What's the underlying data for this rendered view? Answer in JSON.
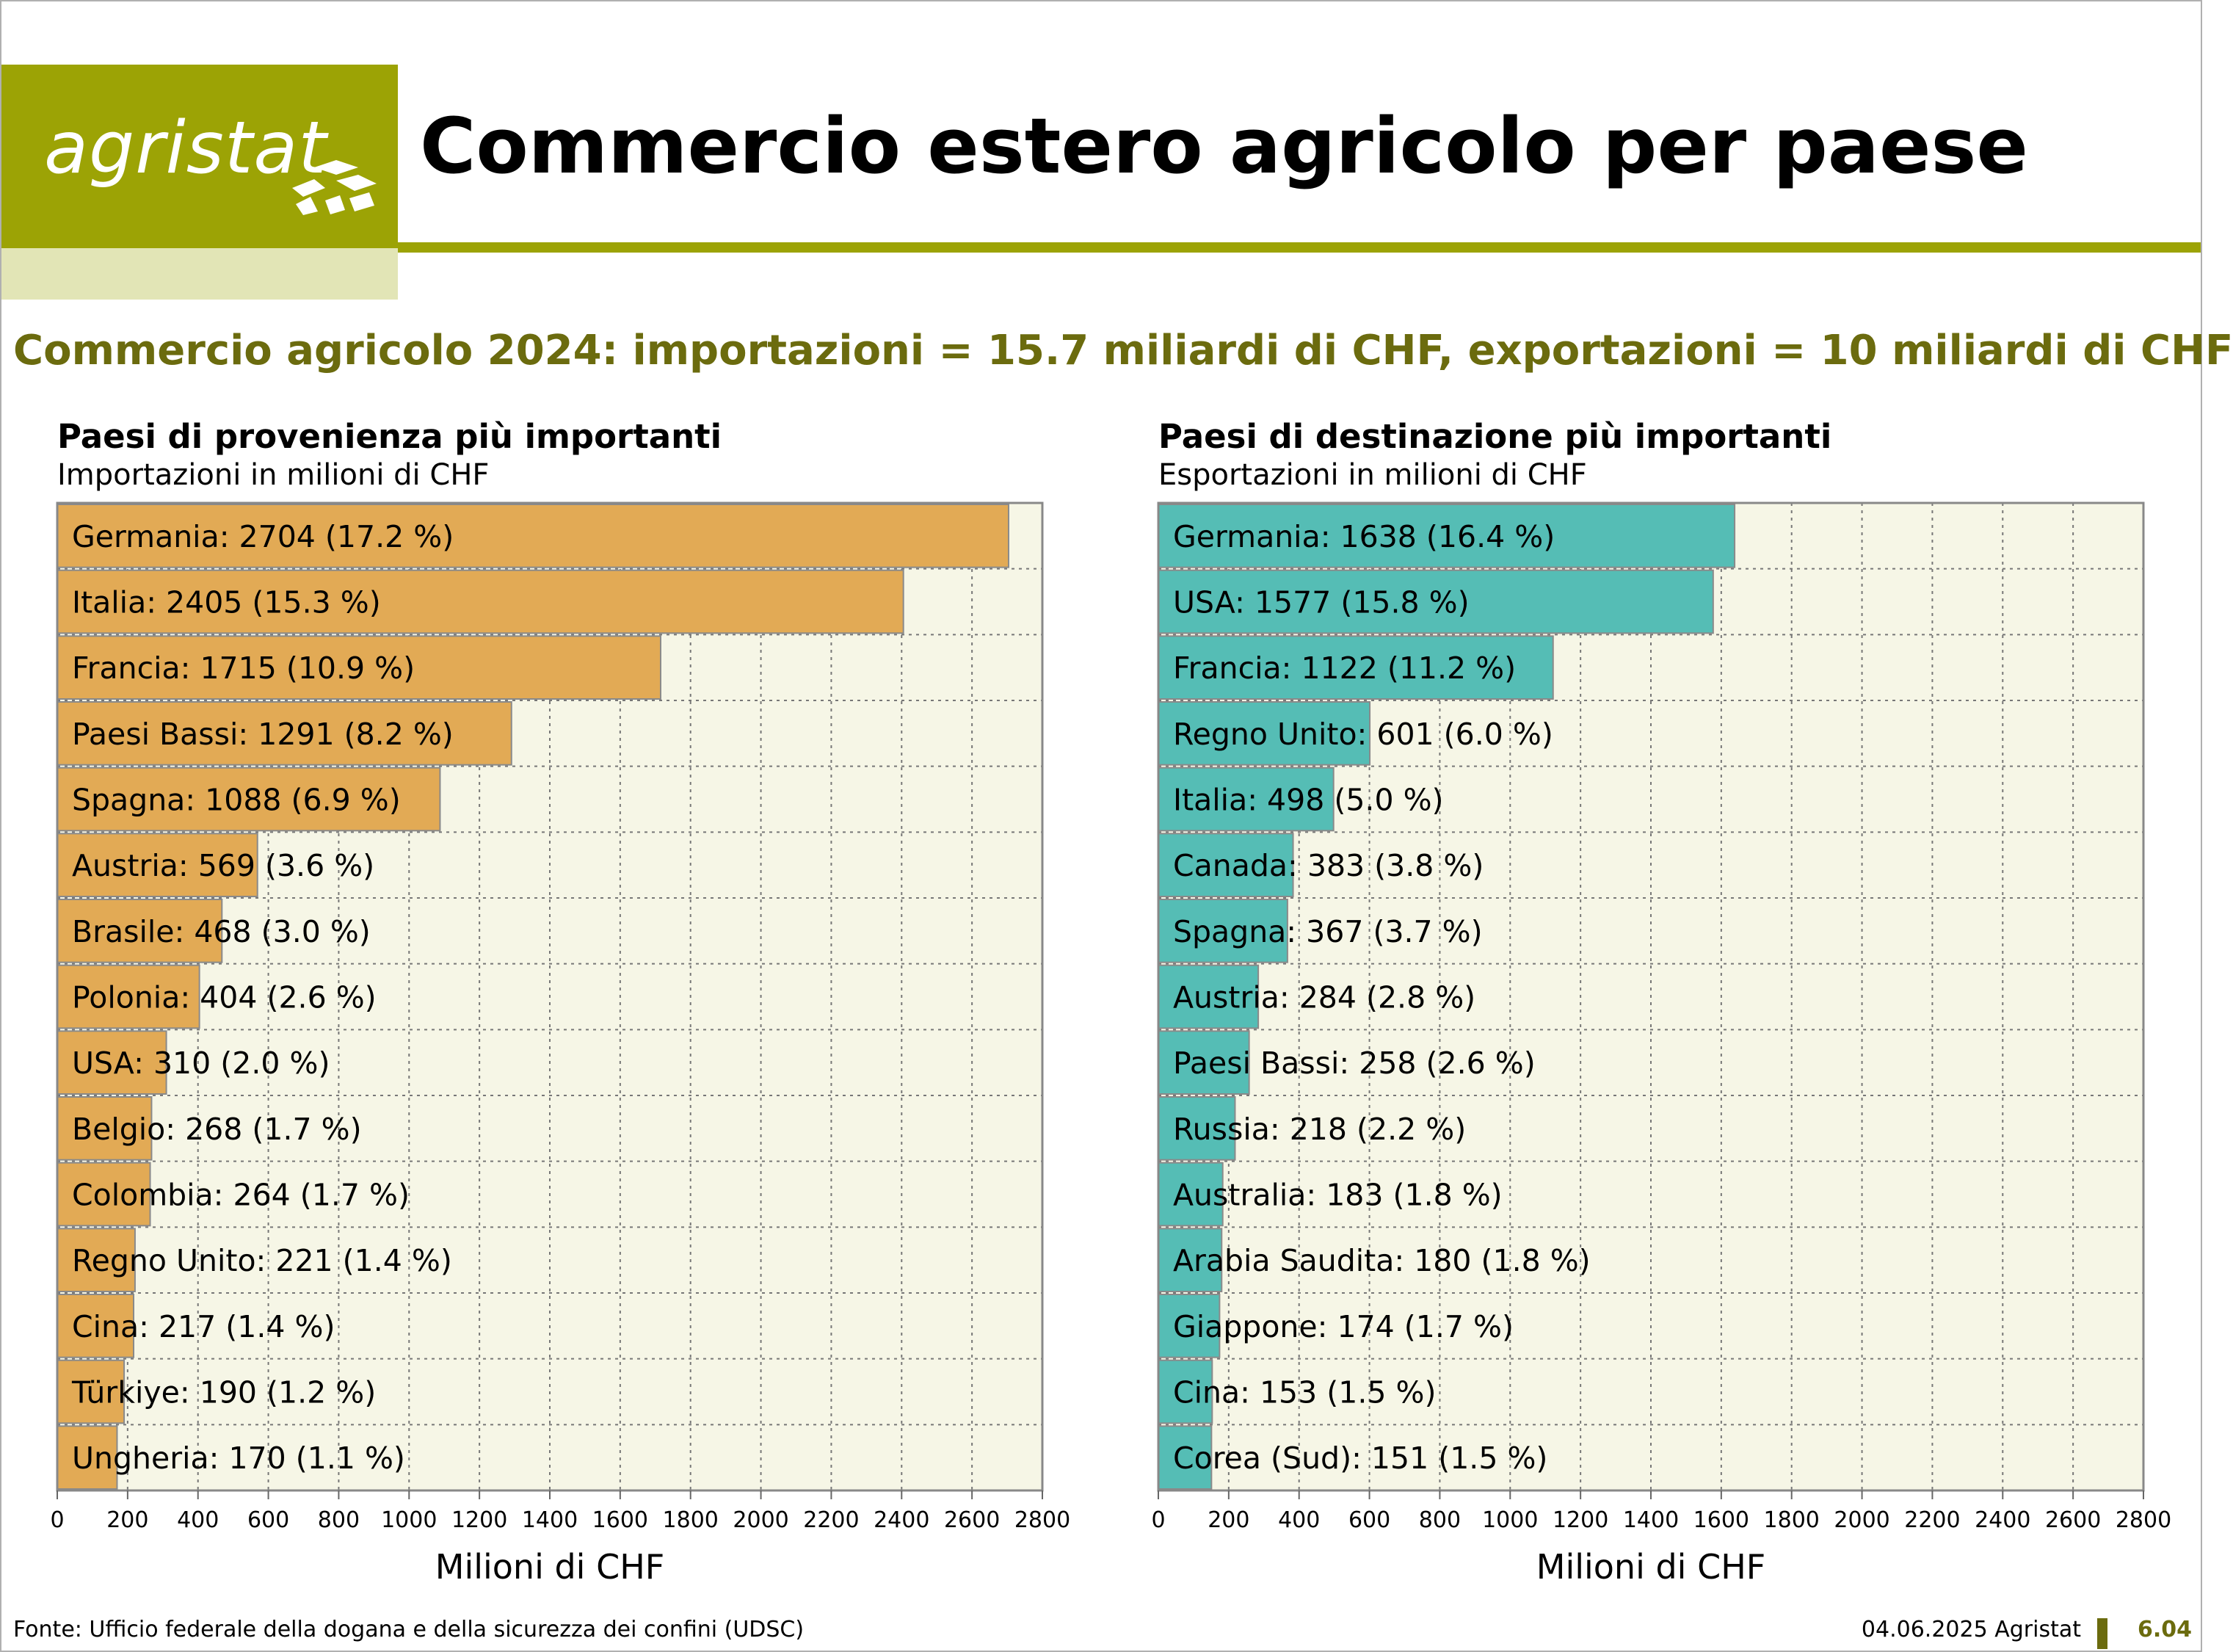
{
  "header": {
    "logo_text": "agristat",
    "title": "Commercio estero agricolo per paese",
    "subtitle": "Commercio agricolo 2024: importazioni = 15.7 miliardi di CHF, exportazioni = 10 miliardi di CHF"
  },
  "colors": {
    "brand": "#9ca305",
    "subtitle": "#6b6b0e",
    "plot_bg": "#f6f6e6",
    "import_bar": "#e2aa55",
    "export_bar": "#55bdb5"
  },
  "footer": {
    "source": "Fonte: Ufficio federale della dogana e della sicurezza dei confini (UDSC)",
    "date": "04.06.2025 Agristat",
    "page": "6.04"
  },
  "chart_data": [
    {
      "type": "bar",
      "orientation": "horizontal",
      "title": "Paesi di provenienza più importanti",
      "subtitle": "Importazioni in milioni di CHF",
      "xlabel": "Milioni di CHF",
      "xlim": [
        0,
        2800
      ],
      "xticks": [
        0,
        200,
        400,
        600,
        800,
        1000,
        1200,
        1400,
        1600,
        1800,
        2000,
        2200,
        2400,
        2600,
        2800
      ],
      "grid": true,
      "color": "#e2aa55",
      "categories": [
        "Germania",
        "Italia",
        "Francia",
        "Paesi Bassi",
        "Spagna",
        "Austria",
        "Brasile",
        "Polonia",
        "USA",
        "Belgio",
        "Colombia",
        "Regno Unito",
        "Cina",
        "Türkiye",
        "Ungheria"
      ],
      "values": [
        2704,
        2405,
        1715,
        1291,
        1088,
        569,
        468,
        404,
        310,
        268,
        264,
        221,
        217,
        190,
        170
      ],
      "labels": [
        "Germania: 2704 (17.2 %)",
        "Italia: 2405 (15.3 %)",
        "Francia: 1715 (10.9 %)",
        "Paesi Bassi: 1291 (8.2 %)",
        "Spagna: 1088 (6.9 %)",
        "Austria: 569 (3.6 %)",
        "Brasile: 468 (3.0 %)",
        "Polonia: 404 (2.6 %)",
        "USA: 310 (2.0 %)",
        "Belgio: 268 (1.7 %)",
        "Colombia: 264 (1.7 %)",
        "Regno Unito: 221 (1.4 %)",
        "Cina: 217 (1.4 %)",
        "Türkiye: 190 (1.2 %)",
        "Ungheria: 170 (1.1 %)"
      ]
    },
    {
      "type": "bar",
      "orientation": "horizontal",
      "title": "Paesi di destinazione più importanti",
      "subtitle": "Esportazioni in milioni di CHF",
      "xlabel": "Milioni di CHF",
      "xlim": [
        0,
        2800
      ],
      "xticks": [
        0,
        200,
        400,
        600,
        800,
        1000,
        1200,
        1400,
        1600,
        1800,
        2000,
        2200,
        2400,
        2600,
        2800
      ],
      "grid": true,
      "color": "#55bdb5",
      "categories": [
        "Germania",
        "USA",
        "Francia",
        "Regno Unito",
        "Italia",
        "Canada",
        "Spagna",
        "Austria",
        "Paesi Bassi",
        "Russia",
        "Australia",
        "Arabia Saudita",
        "Giappone",
        "Cina",
        "Corea (Sud)"
      ],
      "values": [
        1638,
        1577,
        1122,
        601,
        498,
        383,
        367,
        284,
        258,
        218,
        183,
        180,
        174,
        153,
        151
      ],
      "labels": [
        "Germania: 1638 (16.4 %)",
        "USA: 1577 (15.8 %)",
        "Francia: 1122 (11.2 %)",
        "Regno Unito: 601 (6.0 %)",
        "Italia: 498 (5.0 %)",
        "Canada: 383 (3.8 %)",
        "Spagna: 367 (3.7 %)",
        "Austria: 284 (2.8 %)",
        "Paesi Bassi: 258 (2.6 %)",
        "Russia: 218 (2.2 %)",
        "Australia: 183 (1.8 %)",
        "Arabia Saudita: 180 (1.8 %)",
        "Giappone: 174 (1.7 %)",
        "Cina: 153 (1.5 %)",
        "Corea (Sud): 151 (1.5 %)"
      ]
    }
  ]
}
